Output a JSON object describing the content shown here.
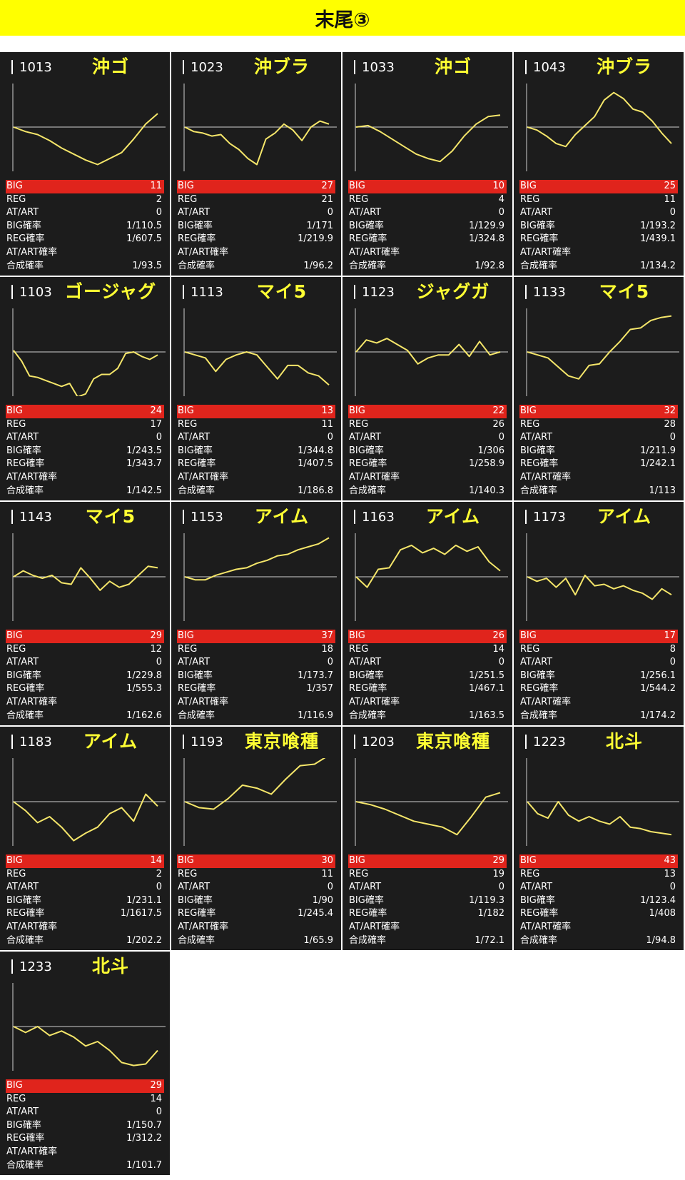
{
  "page": {
    "title": "末尾③"
  },
  "labels": {
    "big": "BIG",
    "reg": "REG",
    "at": "AT/ART",
    "big_rate": "BIG確率",
    "reg_rate": "REG確率",
    "at_rate": "AT/ART確率",
    "total_rate": "合成確率"
  },
  "colors": {
    "header_bg": "#ffff00",
    "card_bg": "#1c1c1c",
    "big_bar": "#e0241c",
    "name_text": "#ffff33",
    "graph_line": "#f5e66a",
    "zero_line": "#cfcfcf"
  },
  "machines": [
    {
      "number": "1013",
      "name": "沖ゴ",
      "big": "11",
      "reg": "2",
      "at": "0",
      "big_rate": "1/110.5",
      "reg_rate": "1/607.5",
      "at_rate": "",
      "total_rate": "1/93.5",
      "trend": [
        0,
        -0.15,
        -0.25,
        -0.45,
        -0.7,
        -0.9,
        -1.1,
        -1.25,
        -1.05,
        -0.85,
        -0.4,
        0.1,
        0.45
      ]
    },
    {
      "number": "1023",
      "name": "沖ブラ",
      "big": "27",
      "reg": "21",
      "at": "0",
      "big_rate": "1/171",
      "reg_rate": "1/219.9",
      "at_rate": "",
      "total_rate": "1/96.2",
      "trend": [
        0,
        -0.15,
        -0.2,
        -0.3,
        -0.25,
        -0.55,
        -0.75,
        -1.05,
        -1.25,
        -0.4,
        -0.2,
        0.1,
        -0.1,
        -0.45,
        0,
        0.2,
        0.1
      ]
    },
    {
      "number": "1033",
      "name": "沖ゴ",
      "big": "10",
      "reg": "4",
      "at": "0",
      "big_rate": "1/129.9",
      "reg_rate": "1/324.8",
      "at_rate": "",
      "total_rate": "1/92.8",
      "trend": [
        0,
        0.05,
        -0.15,
        -0.4,
        -0.65,
        -0.9,
        -1.05,
        -1.15,
        -0.8,
        -0.3,
        0.1,
        0.35,
        0.4
      ]
    },
    {
      "number": "1043",
      "name": "沖ブラ",
      "big": "25",
      "reg": "11",
      "at": "0",
      "big_rate": "1/193.2",
      "reg_rate": "1/439.1",
      "at_rate": "",
      "total_rate": "1/134.2",
      "trend": [
        0,
        -0.1,
        -0.3,
        -0.55,
        -0.65,
        -0.25,
        0.05,
        0.35,
        0.9,
        1.15,
        0.95,
        0.6,
        0.5,
        0.2,
        -0.2,
        -0.55
      ]
    },
    {
      "number": "1103",
      "name": "ゴージャグ",
      "big": "24",
      "reg": "17",
      "at": "0",
      "big_rate": "1/243.5",
      "reg_rate": "1/343.7",
      "at_rate": "",
      "total_rate": "1/142.5",
      "trend": [
        0.05,
        -0.3,
        -0.8,
        -0.85,
        -0.95,
        -1.05,
        -1.15,
        -1.05,
        -1.5,
        -1.4,
        -0.9,
        -0.75,
        -0.75,
        -0.55,
        -0.05,
        0,
        -0.15,
        -0.25,
        -0.1
      ]
    },
    {
      "number": "1113",
      "name": "マイ5",
      "big": "13",
      "reg": "11",
      "at": "0",
      "big_rate": "1/344.8",
      "reg_rate": "1/407.5",
      "at_rate": "",
      "total_rate": "1/186.8",
      "trend": [
        0,
        -0.1,
        -0.2,
        -0.65,
        -0.25,
        -0.1,
        0,
        -0.1,
        -0.5,
        -0.9,
        -0.45,
        -0.45,
        -0.7,
        -0.8,
        -1.1
      ]
    },
    {
      "number": "1123",
      "name": "ジャグガ",
      "big": "22",
      "reg": "26",
      "at": "0",
      "big_rate": "1/306",
      "reg_rate": "1/258.9",
      "at_rate": "",
      "total_rate": "1/140.3",
      "trend": [
        0,
        0.4,
        0.3,
        0.45,
        0.25,
        0.05,
        -0.4,
        -0.2,
        -0.1,
        -0.1,
        0.25,
        -0.15,
        0.35,
        -0.1,
        0
      ]
    },
    {
      "number": "1133",
      "name": "マイ5",
      "big": "32",
      "reg": "28",
      "at": "0",
      "big_rate": "1/211.9",
      "reg_rate": "1/242.1",
      "at_rate": "",
      "total_rate": "1/113",
      "trend": [
        0,
        -0.1,
        -0.2,
        -0.5,
        -0.8,
        -0.9,
        -0.45,
        -0.4,
        0,
        0.35,
        0.75,
        0.8,
        1.05,
        1.15,
        1.2
      ]
    },
    {
      "number": "1143",
      "name": "マイ5",
      "big": "29",
      "reg": "12",
      "at": "0",
      "big_rate": "1/229.8",
      "reg_rate": "1/555.3",
      "at_rate": "",
      "total_rate": "1/162.6",
      "trend": [
        0,
        0.2,
        0.05,
        -0.05,
        0.05,
        -0.2,
        -0.25,
        0.3,
        -0.05,
        -0.45,
        -0.15,
        -0.35,
        -0.25,
        0.05,
        0.35,
        0.3
      ]
    },
    {
      "number": "1153",
      "name": "アイム",
      "big": "37",
      "reg": "18",
      "at": "0",
      "big_rate": "1/173.7",
      "reg_rate": "1/357",
      "at_rate": "",
      "total_rate": "1/116.9",
      "trend": [
        0,
        -0.1,
        -0.1,
        0.05,
        0.15,
        0.25,
        0.3,
        0.45,
        0.55,
        0.7,
        0.75,
        0.9,
        1.0,
        1.1,
        1.3
      ]
    },
    {
      "number": "1163",
      "name": "アイム",
      "big": "26",
      "reg": "14",
      "at": "0",
      "big_rate": "1/251.5",
      "reg_rate": "1/467.1",
      "at_rate": "",
      "total_rate": "1/163.5",
      "trend": [
        0,
        -0.35,
        0.25,
        0.3,
        0.9,
        1.05,
        0.8,
        0.95,
        0.75,
        1.05,
        0.85,
        1.0,
        0.5,
        0.2
      ]
    },
    {
      "number": "1173",
      "name": "アイム",
      "big": "17",
      "reg": "8",
      "at": "0",
      "big_rate": "1/256.1",
      "reg_rate": "1/544.2",
      "at_rate": "",
      "total_rate": "1/174.2",
      "trend": [
        0,
        -0.15,
        -0.05,
        -0.35,
        -0.05,
        -0.6,
        0.05,
        -0.3,
        -0.25,
        -0.4,
        -0.3,
        -0.45,
        -0.55,
        -0.75,
        -0.4,
        -0.6
      ]
    },
    {
      "number": "1183",
      "name": "アイム",
      "big": "14",
      "reg": "2",
      "at": "0",
      "big_rate": "1/231.1",
      "reg_rate": "1/1617.5",
      "at_rate": "",
      "total_rate": "1/202.2",
      "trend": [
        0,
        -0.3,
        -0.7,
        -0.5,
        -0.85,
        -1.3,
        -1.05,
        -0.85,
        -0.4,
        -0.2,
        -0.65,
        0.25,
        -0.15
      ]
    },
    {
      "number": "1193",
      "name": "東京喰種",
      "big": "30",
      "reg": "11",
      "at": "0",
      "big_rate": "1/90",
      "reg_rate": "1/245.4",
      "at_rate": "",
      "total_rate": "1/65.9",
      "trend": [
        0,
        -0.2,
        -0.25,
        0.1,
        0.55,
        0.45,
        0.25,
        0.75,
        1.2,
        1.25,
        1.55
      ]
    },
    {
      "number": "1203",
      "name": "東京喰種",
      "big": "29",
      "reg": "19",
      "at": "0",
      "big_rate": "1/119.3",
      "reg_rate": "1/182",
      "at_rate": "",
      "total_rate": "1/72.1",
      "trend": [
        0,
        -0.1,
        -0.25,
        -0.45,
        -0.65,
        -0.75,
        -0.85,
        -1.1,
        -0.5,
        0.15,
        0.3
      ]
    },
    {
      "number": "1223",
      "name": "北斗",
      "big": "43",
      "reg": "13",
      "at": "0",
      "big_rate": "1/123.4",
      "reg_rate": "1/408",
      "at_rate": "",
      "total_rate": "1/94.8",
      "trend": [
        0,
        -0.4,
        -0.55,
        0,
        -0.45,
        -0.65,
        -0.5,
        -0.65,
        -0.75,
        -0.5,
        -0.85,
        -0.9,
        -1.0,
        -1.05,
        -1.1
      ]
    },
    {
      "number": "1233",
      "name": "北斗",
      "big": "29",
      "reg": "14",
      "at": "0",
      "big_rate": "1/150.7",
      "reg_rate": "1/312.2",
      "at_rate": "",
      "total_rate": "1/101.7",
      "trend": [
        0,
        -0.2,
        0,
        -0.3,
        -0.15,
        -0.35,
        -0.65,
        -0.5,
        -0.8,
        -1.2,
        -1.3,
        -1.25,
        -0.8
      ]
    }
  ]
}
